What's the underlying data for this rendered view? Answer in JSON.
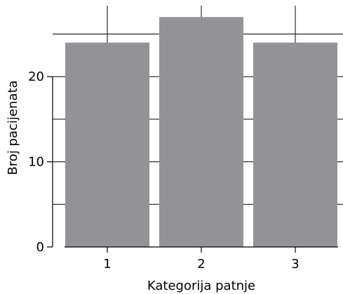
{
  "chart_data": {
    "type": "bar",
    "title": "",
    "xlabel": "Kategorija patnje",
    "ylabel": "Broj pacijenata",
    "categories": [
      "1",
      "2",
      "3"
    ],
    "values": [
      24,
      27,
      24
    ],
    "ylim": [
      0,
      29
    ],
    "yticks": [
      0,
      10,
      20
    ],
    "grid": true,
    "legend": "none",
    "bar_color": "#939397",
    "grid_color": "#000000"
  }
}
